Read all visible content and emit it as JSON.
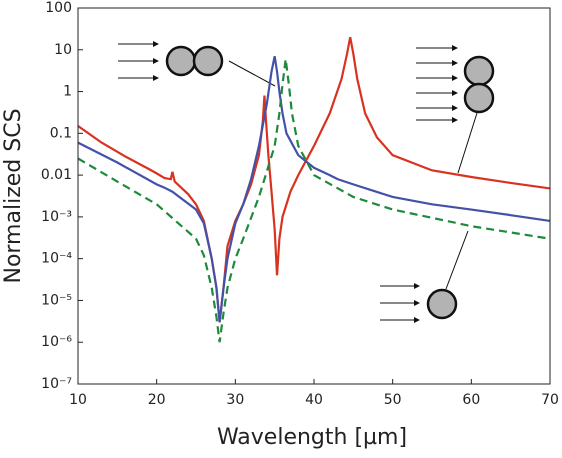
{
  "chart_data": {
    "type": "line",
    "xlabel": "Wavelength [µm]",
    "ylabel": "Normalized SCS",
    "log_y": true,
    "xlim": [
      10,
      70
    ],
    "xticks": [
      10,
      20,
      30,
      40,
      50,
      60,
      70
    ],
    "ylim": [
      1e-07,
      100
    ],
    "yticks": [
      100,
      10,
      1,
      0.1,
      0.01,
      {
        "value": 0.001,
        "label": "10⁻³"
      },
      {
        "value": 0.0001,
        "label": "10⁻⁴"
      },
      {
        "value": 1e-05,
        "label": "10⁻⁵"
      },
      {
        "value": 1e-06,
        "label": "10⁻⁶"
      },
      {
        "value": 1e-07,
        "label": "10⁻⁷"
      }
    ],
    "series": [
      {
        "color": "#d9321f",
        "dash": false,
        "x": [
          10,
          13,
          16,
          19,
          20,
          21,
          21.8,
          22,
          22.3,
          24,
          25,
          26,
          27,
          27.6,
          28,
          28.5,
          29,
          30,
          31,
          32,
          33,
          33.5,
          33.7,
          33.9,
          34.2,
          34.6,
          35,
          35.3,
          35.6,
          36,
          37,
          38,
          40,
          42,
          43.5,
          44.2,
          44.6,
          45,
          45.5,
          46.5,
          48,
          50,
          55,
          60,
          65,
          70
        ],
        "values": [
          0.15,
          0.06,
          0.028,
          0.014,
          0.011,
          0.0085,
          0.008,
          0.012,
          0.007,
          0.0035,
          0.002,
          0.0008,
          0.0001,
          2e-05,
          3e-06,
          2e-05,
          0.0002,
          0.0008,
          0.002,
          0.006,
          0.03,
          0.2,
          0.8,
          0.2,
          0.03,
          0.004,
          0.0005,
          4e-05,
          0.0003,
          0.001,
          0.004,
          0.01,
          0.05,
          0.3,
          2,
          8,
          20,
          8,
          2,
          0.3,
          0.08,
          0.03,
          0.013,
          0.009,
          0.0065,
          0.0048
        ]
      },
      {
        "color": "#4352a8",
        "dash": false,
        "x": [
          10,
          15,
          20,
          21,
          22,
          25,
          26,
          27,
          27.6,
          28,
          28.5,
          29,
          30,
          31,
          32,
          33,
          34,
          34.6,
          35,
          35.3,
          35.6,
          36,
          36.5,
          38,
          40,
          42,
          43,
          45,
          50,
          55,
          60,
          65,
          70
        ],
        "values": [
          0.06,
          0.02,
          0.006,
          0.005,
          0.004,
          0.0015,
          0.0007,
          0.0001,
          2e-05,
          3e-06,
          2e-05,
          0.0001,
          0.0007,
          0.002,
          0.008,
          0.05,
          0.5,
          3,
          7,
          3,
          1,
          0.3,
          0.1,
          0.03,
          0.015,
          0.01,
          0.008,
          0.006,
          0.003,
          0.002,
          0.0015,
          0.0011,
          0.0008
        ]
      },
      {
        "color": "#1e8a3c",
        "dash": true,
        "x": [
          10,
          15,
          20,
          25,
          26,
          27,
          27.6,
          28,
          28.5,
          29,
          30,
          31,
          33,
          35,
          35.6,
          36,
          36.4,
          36.8,
          37.2,
          38,
          40,
          45,
          50,
          60,
          70
        ],
        "values": [
          0.025,
          0.007,
          0.002,
          0.0003,
          0.00012,
          2e-05,
          4e-06,
          1e-06,
          5e-06,
          2e-05,
          0.0001,
          0.0003,
          0.003,
          0.05,
          0.3,
          1.5,
          6,
          1.5,
          0.3,
          0.05,
          0.01,
          0.003,
          0.0015,
          0.0006,
          0.0003
        ]
      }
    ]
  }
}
